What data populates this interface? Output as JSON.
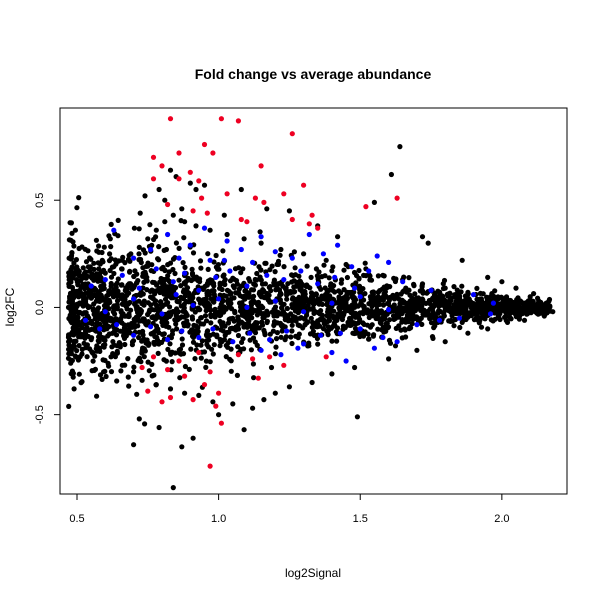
{
  "chart_data": {
    "type": "scatter",
    "title": "Fold change vs average abundance",
    "xlabel": "log2Signal",
    "ylabel": "log2FC",
    "xlim": [
      0.44,
      2.23
    ],
    "ylim": [
      -0.87,
      0.93
    ],
    "x_ticks": [
      {
        "value": 0.5,
        "label": "0.5"
      },
      {
        "value": 1.0,
        "label": "1.0"
      },
      {
        "value": 1.5,
        "label": "1.5"
      },
      {
        "value": 2.0,
        "label": "2.0"
      }
    ],
    "y_ticks": [
      {
        "value": -0.5,
        "label": "-0.5"
      },
      {
        "value": 0.0,
        "label": "0.0"
      },
      {
        "value": 0.5,
        "label": "0.5"
      }
    ],
    "grid": false,
    "legend": "none",
    "colors": {
      "black": "#000000",
      "blue": "#0000ff",
      "red": "#ee0022"
    },
    "series": [
      {
        "color": "black",
        "points": [
          [
            0.84,
            -0.84
          ],
          [
            1.64,
            0.75
          ],
          [
            0.7,
            -0.64
          ],
          [
            0.87,
            -0.65
          ],
          [
            0.91,
            -0.61
          ],
          [
            1.49,
            -0.51
          ],
          [
            0.72,
            -0.52
          ],
          [
            0.79,
            -0.56
          ],
          [
            1.09,
            -0.57
          ],
          [
            1.0,
            -0.5
          ],
          [
            0.83,
            0.64
          ],
          [
            0.85,
            0.61
          ],
          [
            0.79,
            0.55
          ],
          [
            0.74,
            0.52
          ],
          [
            0.9,
            0.58
          ],
          [
            0.92,
            0.55
          ],
          [
            0.95,
            0.57
          ],
          [
            1.08,
            0.55
          ],
          [
            0.81,
            0.5
          ],
          [
            0.87,
            0.46
          ],
          [
            1.17,
            0.46
          ],
          [
            1.25,
            0.45
          ],
          [
            1.02,
            0.43
          ],
          [
            1.72,
            0.33
          ],
          [
            1.74,
            0.3
          ],
          [
            1.86,
            0.22
          ],
          [
            1.95,
            0.14
          ],
          [
            2.0,
            0.12
          ],
          [
            2.05,
            0.09
          ],
          [
            2.1,
            0.05
          ],
          [
            2.13,
            0.03
          ],
          [
            2.16,
            0.02
          ],
          [
            2.18,
            -0.02
          ],
          [
            2.15,
            -0.04
          ],
          [
            2.08,
            -0.06
          ],
          [
            2.02,
            -0.07
          ],
          [
            1.95,
            -0.1
          ],
          [
            1.88,
            -0.12
          ],
          [
            1.8,
            -0.16
          ],
          [
            1.7,
            -0.2
          ],
          [
            1.6,
            -0.24
          ],
          [
            1.48,
            -0.28
          ],
          [
            1.4,
            -0.31
          ],
          [
            1.33,
            -0.35
          ],
          [
            1.25,
            -0.37
          ],
          [
            1.2,
            -0.4
          ],
          [
            1.16,
            -0.43
          ],
          [
            1.12,
            -0.47
          ],
          [
            1.05,
            -0.45
          ],
          [
            0.98,
            -0.44
          ],
          [
            0.93,
            -0.41
          ],
          [
            0.88,
            -0.4
          ],
          [
            0.83,
            -0.38
          ],
          [
            0.78,
            -0.36
          ],
          [
            0.73,
            -0.34
          ],
          [
            0.7,
            -0.3
          ],
          [
            0.66,
            -0.27
          ],
          [
            0.62,
            -0.23
          ],
          [
            0.58,
            -0.19
          ],
          [
            0.55,
            -0.15
          ],
          [
            0.53,
            -0.11
          ],
          [
            0.51,
            -0.08
          ],
          [
            0.49,
            -0.05
          ],
          [
            0.48,
            -0.02
          ],
          [
            0.47,
            0.0
          ],
          [
            0.48,
            0.03
          ],
          [
            0.49,
            0.06
          ],
          [
            0.51,
            0.08
          ],
          [
            0.54,
            0.1
          ],
          [
            0.57,
            0.13
          ],
          [
            0.6,
            0.16
          ],
          [
            0.63,
            0.19
          ],
          [
            0.66,
            0.22
          ],
          [
            0.69,
            0.25
          ],
          [
            0.72,
            0.28
          ],
          [
            0.75,
            0.32
          ],
          [
            0.78,
            0.36
          ],
          [
            0.81,
            0.4
          ],
          [
            0.84,
            0.43
          ],
          [
            0.88,
            0.4
          ],
          [
            0.92,
            0.38
          ],
          [
            0.97,
            0.36
          ],
          [
            1.03,
            0.34
          ],
          [
            1.09,
            0.32
          ],
          [
            1.15,
            0.3
          ],
          [
            1.22,
            0.27
          ],
          [
            1.3,
            0.25
          ],
          [
            1.38,
            0.22
          ],
          [
            1.45,
            0.2
          ],
          [
            1.52,
            0.18
          ],
          [
            1.58,
            0.15
          ],
          [
            1.65,
            0.13
          ],
          [
            1.72,
            0.11
          ],
          [
            1.8,
            0.09
          ],
          [
            1.88,
            0.07
          ],
          [
            1.96,
            0.05
          ],
          [
            1.61,
            0.62
          ],
          [
            1.55,
            0.49
          ],
          [
            1.35,
            0.38
          ],
          [
            1.42,
            0.33
          ]
        ]
      },
      {
        "color": "blue",
        "points": [
          [
            0.63,
            0.36
          ],
          [
            0.7,
            0.23
          ],
          [
            0.76,
            0.27
          ],
          [
            0.82,
            0.34
          ],
          [
            0.86,
            0.23
          ],
          [
            0.9,
            0.29
          ],
          [
            0.95,
            0.37
          ],
          [
            0.97,
            0.22
          ],
          [
            1.03,
            0.31
          ],
          [
            1.08,
            0.27
          ],
          [
            1.12,
            0.21
          ],
          [
            1.15,
            0.33
          ],
          [
            1.2,
            0.26
          ],
          [
            1.26,
            0.23
          ],
          [
            1.32,
            0.34
          ],
          [
            1.37,
            0.25
          ],
          [
            1.42,
            0.29
          ],
          [
            1.47,
            0.19
          ],
          [
            1.53,
            0.17
          ],
          [
            1.56,
            0.24
          ],
          [
            1.6,
            0.21
          ],
          [
            1.65,
            0.12
          ],
          [
            1.75,
            0.08
          ],
          [
            1.9,
            0.06
          ],
          [
            1.97,
            0.02
          ],
          [
            0.55,
            0.1
          ],
          [
            0.6,
            0.13
          ],
          [
            0.66,
            0.15
          ],
          [
            0.72,
            0.09
          ],
          [
            0.78,
            0.18
          ],
          [
            0.84,
            0.12
          ],
          [
            0.88,
            0.16
          ],
          [
            0.93,
            0.08
          ],
          [
            0.99,
            0.14
          ],
          [
            1.04,
            0.17
          ],
          [
            1.1,
            0.1
          ],
          [
            1.17,
            0.15
          ],
          [
            1.23,
            0.13
          ],
          [
            1.29,
            0.17
          ],
          [
            1.35,
            0.11
          ],
          [
            1.41,
            0.14
          ],
          [
            1.48,
            0.09
          ],
          [
            0.53,
            -0.06
          ],
          [
            0.58,
            -0.1
          ],
          [
            0.64,
            -0.08
          ],
          [
            0.7,
            -0.13
          ],
          [
            0.76,
            -0.09
          ],
          [
            0.82,
            -0.15
          ],
          [
            0.87,
            -0.11
          ],
          [
            0.93,
            -0.14
          ],
          [
            0.98,
            -0.1
          ],
          [
            1.05,
            -0.16
          ],
          [
            1.11,
            -0.12
          ],
          [
            1.18,
            -0.15
          ],
          [
            1.24,
            -0.11
          ],
          [
            1.3,
            -0.17
          ],
          [
            1.36,
            -0.13
          ],
          [
            1.43,
            -0.12
          ],
          [
            1.5,
            -0.1
          ],
          [
            1.58,
            -0.14
          ],
          [
            1.63,
            -0.16
          ],
          [
            1.7,
            -0.08
          ],
          [
            1.78,
            -0.06
          ],
          [
            1.85,
            -0.05
          ],
          [
            1.96,
            -0.03
          ],
          [
            1.15,
            -0.2
          ],
          [
            1.22,
            -0.22
          ],
          [
            1.28,
            -0.19
          ],
          [
            1.4,
            -0.21
          ],
          [
            1.45,
            -0.25
          ],
          [
            1.55,
            -0.19
          ],
          [
            1.02,
            0.22
          ],
          [
            0.91,
            0.01
          ],
          [
            1.0,
            0.04
          ],
          [
            1.1,
            0.0
          ],
          [
            1.2,
            0.03
          ],
          [
            1.3,
            -0.02
          ],
          [
            1.4,
            0.02
          ],
          [
            1.5,
            0.05
          ],
          [
            1.6,
            -0.01
          ],
          [
            0.7,
            0.04
          ],
          [
            0.8,
            -0.03
          ],
          [
            0.6,
            -0.02
          ],
          [
            0.85,
            0.06
          ]
        ]
      },
      {
        "color": "red",
        "points": [
          [
            0.83,
            0.88
          ],
          [
            1.01,
            0.88
          ],
          [
            1.07,
            0.87
          ],
          [
            1.26,
            0.81
          ],
          [
            0.95,
            0.76
          ],
          [
            0.98,
            0.72
          ],
          [
            0.86,
            0.72
          ],
          [
            0.77,
            0.7
          ],
          [
            0.8,
            0.66
          ],
          [
            1.15,
            0.66
          ],
          [
            0.9,
            0.63
          ],
          [
            0.86,
            0.6
          ],
          [
            0.93,
            0.59
          ],
          [
            0.77,
            0.6
          ],
          [
            1.3,
            0.57
          ],
          [
            1.13,
            0.51
          ],
          [
            1.23,
            0.53
          ],
          [
            1.03,
            0.53
          ],
          [
            0.94,
            0.51
          ],
          [
            1.52,
            0.47
          ],
          [
            1.63,
            0.51
          ],
          [
            1.16,
            0.49
          ],
          [
            0.82,
            0.48
          ],
          [
            0.91,
            0.45
          ],
          [
            0.96,
            0.44
          ],
          [
            1.33,
            0.43
          ],
          [
            1.26,
            0.41
          ],
          [
            1.08,
            0.41
          ],
          [
            1.32,
            0.39
          ],
          [
            1.35,
            0.37
          ],
          [
            1.1,
            0.4
          ],
          [
            0.77,
            -0.23
          ],
          [
            0.86,
            -0.25
          ],
          [
            0.93,
            -0.21
          ],
          [
            1.07,
            -0.22
          ],
          [
            1.12,
            -0.24
          ],
          [
            1.18,
            -0.23
          ],
          [
            0.82,
            -0.29
          ],
          [
            0.97,
            -0.3
          ],
          [
            1.23,
            -0.27
          ],
          [
            1.38,
            -0.23
          ],
          [
            0.75,
            -0.39
          ],
          [
            0.95,
            -0.36
          ],
          [
            1.0,
            -0.4
          ],
          [
            0.83,
            -0.42
          ],
          [
            0.8,
            -0.44
          ],
          [
            0.91,
            -0.43
          ],
          [
            0.99,
            -0.46
          ],
          [
            1.01,
            -0.54
          ],
          [
            0.97,
            -0.74
          ],
          [
            0.88,
            -0.32
          ],
          [
            1.14,
            -0.33
          ],
          [
            0.73,
            -0.28
          ]
        ]
      }
    ]
  }
}
